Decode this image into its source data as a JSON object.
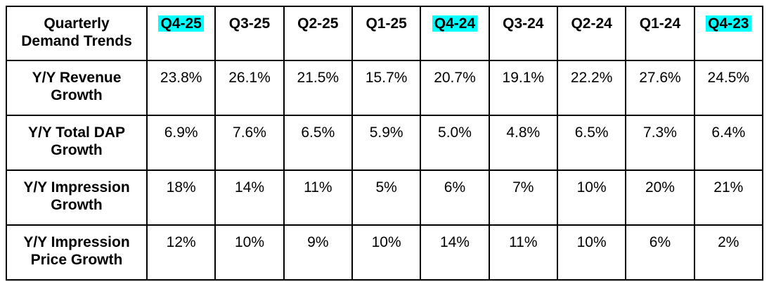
{
  "colors": {
    "highlight": "#00ffff",
    "border": "#000000",
    "text": "#000000",
    "background": "#ffffff"
  },
  "table": {
    "corner_label": "Quarterly\nDemand Trends",
    "columns": [
      {
        "label": "Q4-25",
        "highlighted": true
      },
      {
        "label": "Q3-25",
        "highlighted": false
      },
      {
        "label": "Q2-25",
        "highlighted": false
      },
      {
        "label": "Q1-25",
        "highlighted": false
      },
      {
        "label": "Q4-24",
        "highlighted": true
      },
      {
        "label": "Q3-24",
        "highlighted": false
      },
      {
        "label": "Q2-24",
        "highlighted": false
      },
      {
        "label": "Q1-24",
        "highlighted": false
      },
      {
        "label": "Q4-23",
        "highlighted": true
      }
    ],
    "rows": [
      {
        "label": "Y/Y Revenue\nGrowth",
        "values": [
          "23.8%",
          "26.1%",
          "21.5%",
          "15.7%",
          "20.7%",
          "19.1%",
          "22.2%",
          "27.6%",
          "24.5%"
        ]
      },
      {
        "label": "Y/Y Total DAP\nGrowth",
        "values": [
          "6.9%",
          "7.6%",
          "6.5%",
          "5.9%",
          "5.0%",
          "4.8%",
          "6.5%",
          "7.3%",
          "6.4%"
        ]
      },
      {
        "label": "Y/Y Impression\nGrowth",
        "values": [
          "18%",
          "14%",
          "11%",
          "5%",
          "6%",
          "7%",
          "10%",
          "20%",
          "21%"
        ]
      },
      {
        "label": "Y/Y Impression\nPrice Growth",
        "values": [
          "12%",
          "10%",
          "9%",
          "10%",
          "14%",
          "11%",
          "10%",
          "6%",
          "2%"
        ]
      }
    ]
  },
  "chart_data": {
    "type": "table",
    "title": "Quarterly Demand Trends",
    "categories": [
      "Q4-25",
      "Q3-25",
      "Q2-25",
      "Q1-25",
      "Q4-24",
      "Q3-24",
      "Q2-24",
      "Q1-24",
      "Q4-23"
    ],
    "highlighted_categories": [
      "Q4-25",
      "Q4-24",
      "Q4-23"
    ],
    "series": [
      {
        "name": "Y/Y Revenue Growth",
        "values": [
          23.8,
          26.1,
          21.5,
          15.7,
          20.7,
          19.1,
          22.2,
          27.6,
          24.5
        ],
        "unit": "%"
      },
      {
        "name": "Y/Y Total DAP Growth",
        "values": [
          6.9,
          7.6,
          6.5,
          5.9,
          5.0,
          4.8,
          6.5,
          7.3,
          6.4
        ],
        "unit": "%"
      },
      {
        "name": "Y/Y Impression Growth",
        "values": [
          18,
          14,
          11,
          5,
          6,
          7,
          10,
          20,
          21
        ],
        "unit": "%"
      },
      {
        "name": "Y/Y Impression Price Growth",
        "values": [
          12,
          10,
          9,
          10,
          14,
          11,
          10,
          6,
          2
        ],
        "unit": "%"
      }
    ]
  }
}
